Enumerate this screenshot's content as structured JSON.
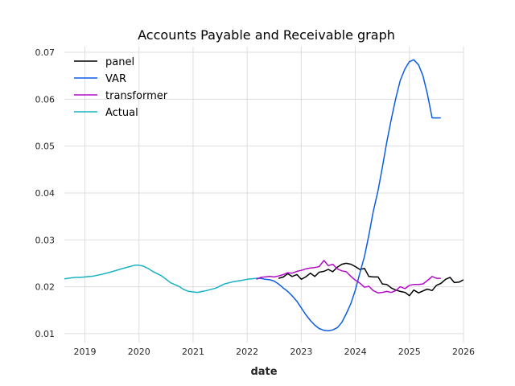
{
  "chart_data": {
    "type": "line",
    "title": "Accounts Payable and Receivable graph",
    "xlabel": "date",
    "ylabel": "",
    "xlim": [
      2018.62,
      2026.0
    ],
    "ylim": [
      0.0081,
      0.0712
    ],
    "x_ticks": [
      2019,
      2020,
      2021,
      2022,
      2023,
      2024,
      2025,
      2026
    ],
    "x_tick_labels": [
      "2019",
      "2020",
      "2021",
      "2022",
      "2023",
      "2024",
      "2025",
      "2026"
    ],
    "y_ticks": [
      0.01,
      0.02,
      0.03,
      0.04,
      0.05,
      0.06,
      0.07
    ],
    "y_tick_labels": [
      "0.01",
      "0.02",
      "0.03",
      "0.04",
      "0.05",
      "0.06",
      "0.07"
    ],
    "grid": true,
    "legend_position": "top-left",
    "series": [
      {
        "name": "panel",
        "color": "#000000",
        "x": [
          2022.58,
          2022.67,
          2022.75,
          2022.83,
          2022.92,
          2023.0,
          2023.08,
          2023.17,
          2023.25,
          2023.33,
          2023.42,
          2023.5,
          2023.58,
          2023.67,
          2023.75,
          2023.83,
          2023.92,
          2024.0,
          2024.08,
          2024.17,
          2024.25,
          2024.33,
          2024.42,
          2024.5,
          2024.58,
          2024.67,
          2024.75,
          2024.83,
          2024.92,
          2025.0,
          2025.08,
          2025.17,
          2025.25,
          2025.33,
          2025.42,
          2025.5,
          2025.58,
          2025.67,
          2025.75,
          2025.83,
          2025.92,
          2026.0
        ],
        "y": [
          0.0218,
          0.0221,
          0.0228,
          0.0222,
          0.0226,
          0.0216,
          0.0221,
          0.0229,
          0.0222,
          0.0231,
          0.0233,
          0.0237,
          0.0232,
          0.0242,
          0.0248,
          0.025,
          0.0248,
          0.0243,
          0.0237,
          0.0239,
          0.0222,
          0.0221,
          0.0221,
          0.0206,
          0.0205,
          0.0197,
          0.0193,
          0.019,
          0.0188,
          0.0181,
          0.0193,
          0.0187,
          0.0191,
          0.0195,
          0.0192,
          0.0203,
          0.0207,
          0.0216,
          0.022,
          0.0209,
          0.021,
          0.0215
        ]
      },
      {
        "name": "VAR",
        "color": "#0c5ce6",
        "x": [
          2022.17,
          2022.25,
          2022.33,
          2022.42,
          2022.5,
          2022.58,
          2022.67,
          2022.75,
          2022.83,
          2022.92,
          2023.0,
          2023.08,
          2023.17,
          2023.25,
          2023.33,
          2023.42,
          2023.5,
          2023.58,
          2023.67,
          2023.75,
          2023.83,
          2023.92,
          2024.0,
          2024.08,
          2024.17,
          2024.25,
          2024.33,
          2024.42,
          2024.5,
          2024.58,
          2024.67,
          2024.75,
          2024.83,
          2024.92,
          2025.0,
          2025.08,
          2025.17,
          2025.25,
          2025.33,
          2025.42,
          2025.5,
          2025.58
        ],
        "y": [
          0.0218,
          0.0218,
          0.0216,
          0.0215,
          0.0212,
          0.0206,
          0.0197,
          0.019,
          0.0181,
          0.0169,
          0.0155,
          0.0141,
          0.0128,
          0.0118,
          0.0111,
          0.0107,
          0.0106,
          0.0108,
          0.0113,
          0.0124,
          0.0142,
          0.0165,
          0.0193,
          0.0228,
          0.0265,
          0.031,
          0.036,
          0.0405,
          0.0455,
          0.0508,
          0.056,
          0.0603,
          0.064,
          0.0665,
          0.068,
          0.0684,
          0.0673,
          0.065,
          0.0612,
          0.056,
          0.056,
          0.056
        ]
      },
      {
        "name": "transformer",
        "color": "#b30cc8",
        "x": [
          2022.17,
          2022.25,
          2022.33,
          2022.42,
          2022.5,
          2022.58,
          2022.67,
          2022.75,
          2022.83,
          2022.92,
          2023.0,
          2023.08,
          2023.17,
          2023.25,
          2023.33,
          2023.42,
          2023.5,
          2023.58,
          2023.67,
          2023.75,
          2023.83,
          2023.92,
          2024.0,
          2024.08,
          2024.17,
          2024.25,
          2024.33,
          2024.42,
          2024.5,
          2024.58,
          2024.67,
          2024.75,
          2024.83,
          2024.92,
          2025.0,
          2025.08,
          2025.17,
          2025.25,
          2025.33,
          2025.42,
          2025.5,
          2025.58
        ],
        "y": [
          0.0216,
          0.022,
          0.0221,
          0.0222,
          0.0221,
          0.0223,
          0.0226,
          0.023,
          0.0229,
          0.0233,
          0.0235,
          0.0238,
          0.024,
          0.0241,
          0.0243,
          0.0256,
          0.0245,
          0.0248,
          0.0238,
          0.0234,
          0.0232,
          0.0222,
          0.0214,
          0.0208,
          0.0199,
          0.0201,
          0.0192,
          0.0187,
          0.0188,
          0.019,
          0.0188,
          0.0192,
          0.02,
          0.0196,
          0.0203,
          0.0205,
          0.0205,
          0.0206,
          0.0213,
          0.0222,
          0.0218,
          0.0218
        ]
      },
      {
        "name": "Actual",
        "color": "#19b2c2",
        "x": [
          2018.62,
          2018.75,
          2018.83,
          2018.92,
          2019.0,
          2019.17,
          2019.33,
          2019.5,
          2019.67,
          2019.83,
          2019.92,
          2020.0,
          2020.08,
          2020.17,
          2020.25,
          2020.42,
          2020.58,
          2020.75,
          2020.83,
          2020.92,
          2021.0,
          2021.08,
          2021.17,
          2021.25,
          2021.42,
          2021.58,
          2021.75,
          2021.92,
          2022.0,
          2022.17
        ],
        "y": [
          0.0217,
          0.0219,
          0.022,
          0.022,
          0.0221,
          0.0223,
          0.0227,
          0.0232,
          0.0238,
          0.0243,
          0.0246,
          0.0246,
          0.0244,
          0.0239,
          0.0233,
          0.0223,
          0.0209,
          0.02,
          0.0194,
          0.019,
          0.0189,
          0.0188,
          0.019,
          0.0192,
          0.0197,
          0.0206,
          0.0211,
          0.0214,
          0.0216,
          0.0218
        ]
      }
    ]
  }
}
